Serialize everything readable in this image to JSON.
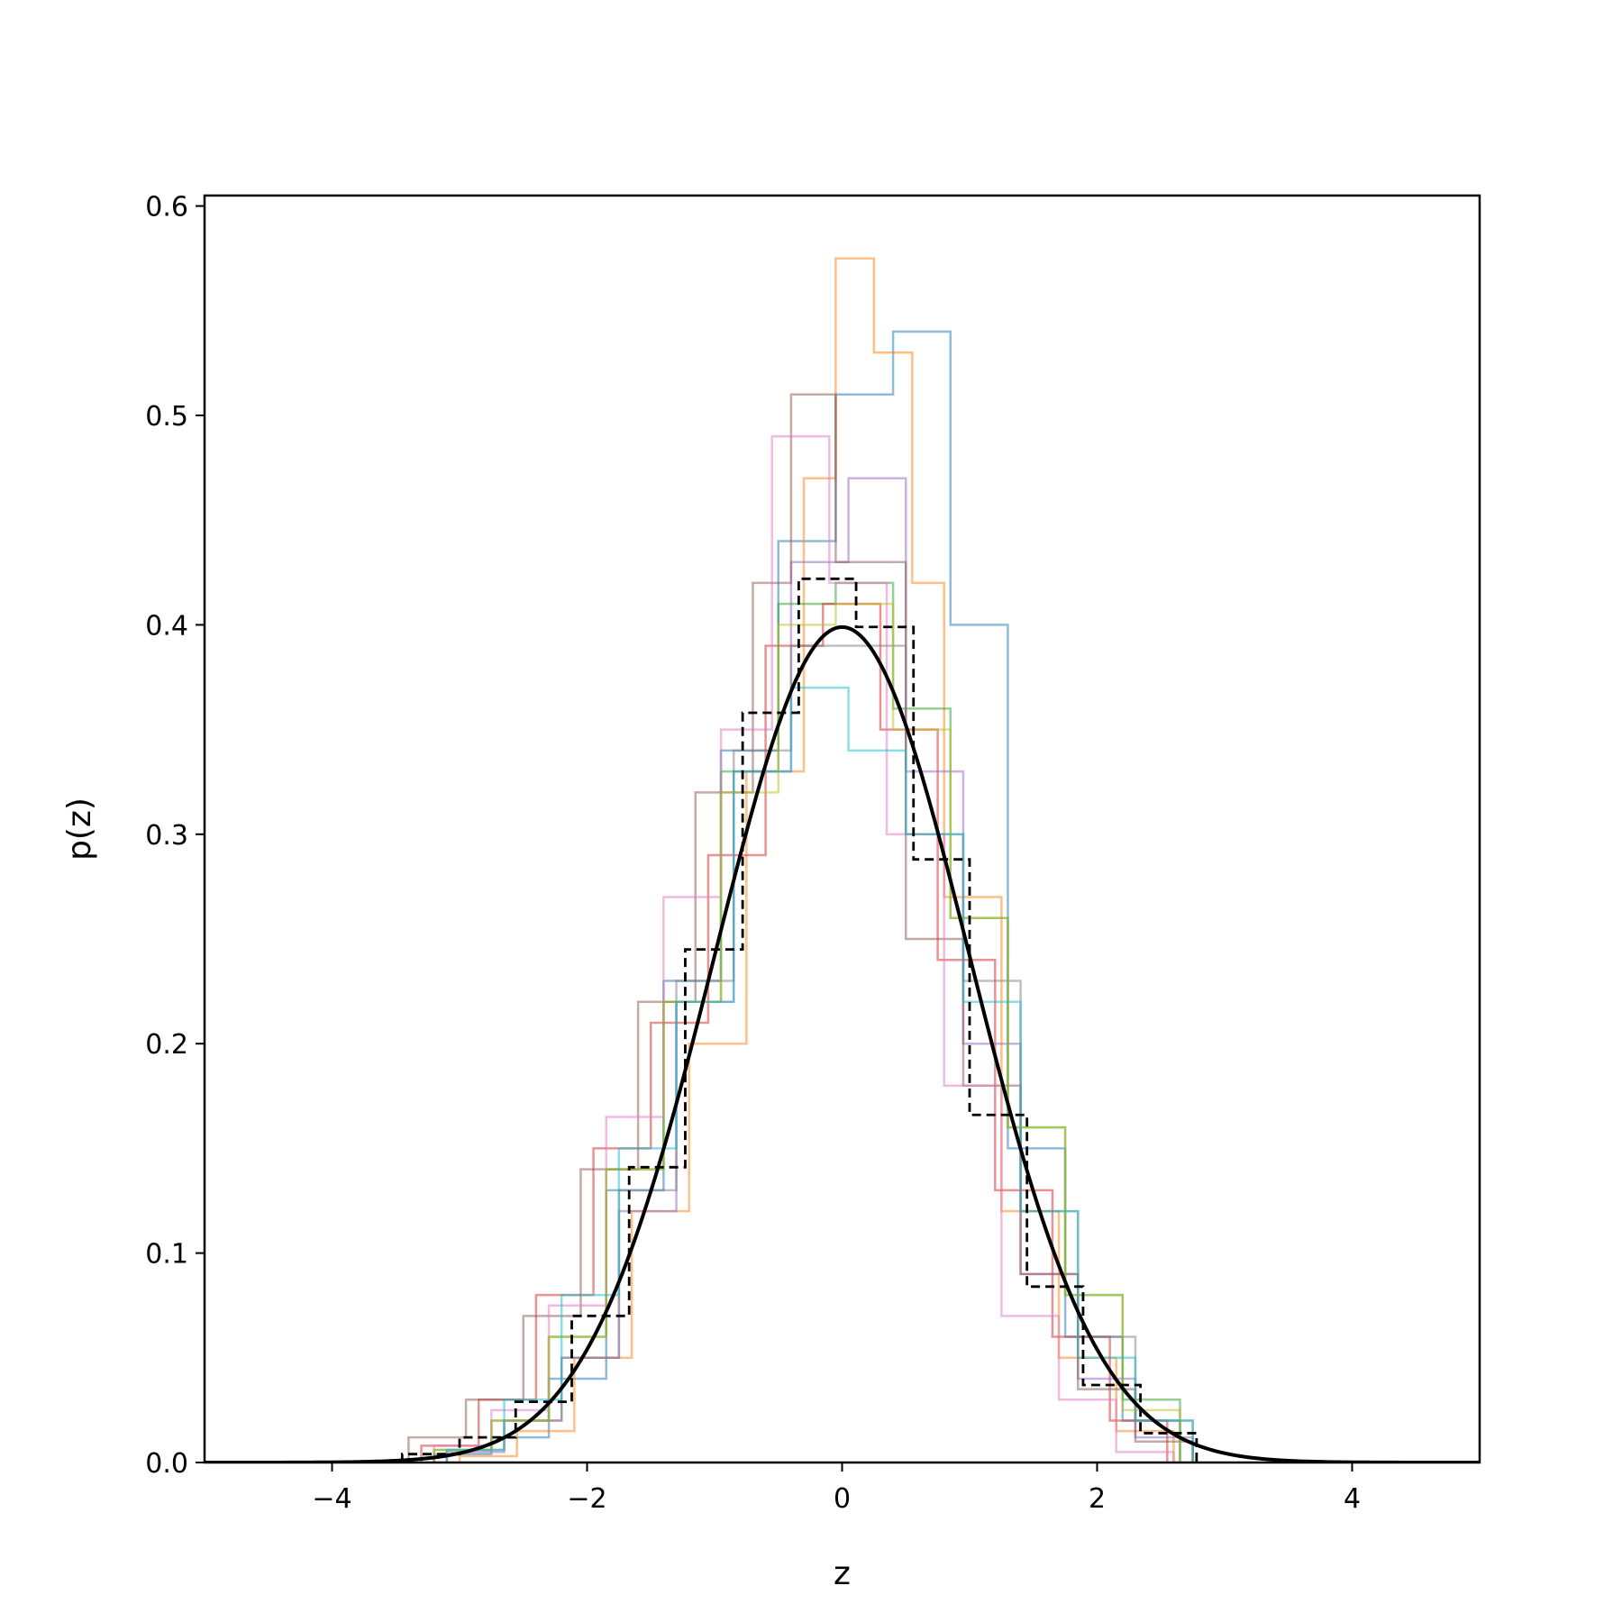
{
  "chart_data": {
    "type": "histogram",
    "xlabel": "z",
    "ylabel": "p(z)",
    "xlim": [
      -5,
      5
    ],
    "ylim": [
      0,
      0.605
    ],
    "x_ticks": [
      -4,
      -2,
      0,
      2,
      4
    ],
    "x_tick_labels": [
      "−4",
      "−2",
      "0",
      "2",
      "4"
    ],
    "y_ticks": [
      0.0,
      0.1,
      0.2,
      0.3,
      0.4,
      0.5,
      0.6
    ],
    "y_tick_labels": [
      "0.0",
      "0.1",
      "0.2",
      "0.3",
      "0.4",
      "0.5",
      "0.6"
    ],
    "grid": false,
    "legend": "none",
    "reference_curve": {
      "type": "line",
      "description": "standard normal pdf",
      "mean": 0,
      "std": 1,
      "x_range": [
        -5,
        5
      ],
      "color": "#000000"
    },
    "dashed_histogram": {
      "color": "#000000",
      "style": "dashed",
      "edges": [
        -3.45,
        -3.0,
        -2.56,
        -2.12,
        -1.67,
        -1.23,
        -0.78,
        -0.34,
        0.11,
        0.56,
        1.0,
        1.45,
        1.89,
        2.34,
        2.78
      ],
      "values": [
        0.004,
        0.012,
        0.029,
        0.07,
        0.141,
        0.245,
        0.358,
        0.422,
        0.399,
        0.288,
        0.166,
        0.084,
        0.037,
        0.014
      ]
    },
    "sample_histograms": {
      "count": 10,
      "alpha": 0.5,
      "series": [
        {
          "color": "#1f77b4",
          "edges": [
            -3.2,
            -2.75,
            -2.3,
            -1.85,
            -1.4,
            -0.95,
            -0.5,
            -0.05,
            0.4,
            0.85,
            1.3,
            1.75,
            2.2,
            2.65
          ],
          "values": [
            0.004,
            0.012,
            0.04,
            0.13,
            0.23,
            0.34,
            0.44,
            0.51,
            0.54,
            0.4,
            0.15,
            0.06,
            0.02
          ]
        },
        {
          "color": "#ff7f0e",
          "edges": [
            -3.0,
            -2.55,
            -2.1,
            -1.65,
            -1.2,
            -0.75,
            -0.3,
            -0.05,
            0.25,
            0.55,
            0.8,
            1.25,
            1.7,
            2.15,
            2.6
          ],
          "values": [
            0.003,
            0.015,
            0.05,
            0.12,
            0.2,
            0.33,
            0.47,
            0.575,
            0.53,
            0.42,
            0.27,
            0.12,
            0.05,
            0.015
          ]
        },
        {
          "color": "#2ca02c",
          "edges": [
            -3.2,
            -2.75,
            -2.3,
            -1.85,
            -1.4,
            -0.95,
            -0.5,
            -0.05,
            0.4,
            0.85,
            1.3,
            1.75,
            2.2,
            2.65
          ],
          "values": [
            0.006,
            0.02,
            0.06,
            0.14,
            0.22,
            0.33,
            0.41,
            0.42,
            0.36,
            0.26,
            0.16,
            0.08,
            0.03
          ]
        },
        {
          "color": "#d62728",
          "edges": [
            -3.3,
            -2.85,
            -2.4,
            -1.95,
            -1.5,
            -1.05,
            -0.6,
            -0.15,
            0.3,
            0.75,
            1.2,
            1.65,
            2.1,
            2.55
          ],
          "values": [
            0.008,
            0.03,
            0.08,
            0.15,
            0.21,
            0.29,
            0.39,
            0.41,
            0.35,
            0.24,
            0.13,
            0.06,
            0.02
          ]
        },
        {
          "color": "#9467bd",
          "edges": [
            -3.1,
            -2.65,
            -2.2,
            -1.75,
            -1.3,
            -0.85,
            -0.4,
            0.05,
            0.5,
            0.95,
            1.4,
            1.85,
            2.3,
            2.75
          ],
          "values": [
            0.005,
            0.02,
            0.05,
            0.12,
            0.22,
            0.33,
            0.43,
            0.47,
            0.33,
            0.2,
            0.09,
            0.04,
            0.012
          ]
        },
        {
          "color": "#8c564b",
          "edges": [
            -3.4,
            -2.95,
            -2.5,
            -2.05,
            -1.6,
            -1.15,
            -0.7,
            -0.4,
            -0.05,
            0.5,
            0.95,
            1.4,
            1.85,
            2.3,
            2.75
          ],
          "values": [
            0.012,
            0.03,
            0.07,
            0.14,
            0.22,
            0.32,
            0.42,
            0.51,
            0.43,
            0.25,
            0.18,
            0.09,
            0.035,
            0.01
          ]
        },
        {
          "color": "#e377c2",
          "edges": [
            -3.2,
            -2.75,
            -2.3,
            -1.85,
            -1.4,
            -0.95,
            -0.55,
            -0.1,
            0.35,
            0.8,
            1.25,
            1.7,
            2.15,
            2.6
          ],
          "values": [
            0.008,
            0.025,
            0.075,
            0.165,
            0.27,
            0.35,
            0.49,
            0.42,
            0.3,
            0.18,
            0.07,
            0.03,
            0.005
          ]
        },
        {
          "color": "#7f7f7f",
          "edges": [
            -3.1,
            -2.65,
            -2.2,
            -1.75,
            -1.3,
            -0.85,
            -0.4,
            0.05,
            0.5,
            0.95,
            1.4,
            1.85,
            2.3,
            2.75
          ],
          "values": [
            0.006,
            0.02,
            0.05,
            0.13,
            0.23,
            0.34,
            0.39,
            0.39,
            0.3,
            0.23,
            0.12,
            0.06,
            0.02
          ]
        },
        {
          "color": "#bcbd22",
          "edges": [
            -3.2,
            -2.75,
            -2.3,
            -1.85,
            -1.4,
            -0.95,
            -0.5,
            -0.05,
            0.4,
            0.85,
            1.3,
            1.75,
            2.2,
            2.65
          ],
          "values": [
            0.006,
            0.02,
            0.06,
            0.14,
            0.22,
            0.32,
            0.4,
            0.41,
            0.35,
            0.26,
            0.16,
            0.08,
            0.025
          ]
        },
        {
          "color": "#17becf",
          "edges": [
            -3.1,
            -2.65,
            -2.2,
            -1.75,
            -1.3,
            -0.85,
            -0.4,
            0.05,
            0.5,
            0.95,
            1.4,
            1.85,
            2.3,
            2.75
          ],
          "values": [
            0.006,
            0.03,
            0.08,
            0.15,
            0.22,
            0.33,
            0.37,
            0.34,
            0.3,
            0.22,
            0.12,
            0.05,
            0.02
          ]
        }
      ]
    }
  }
}
